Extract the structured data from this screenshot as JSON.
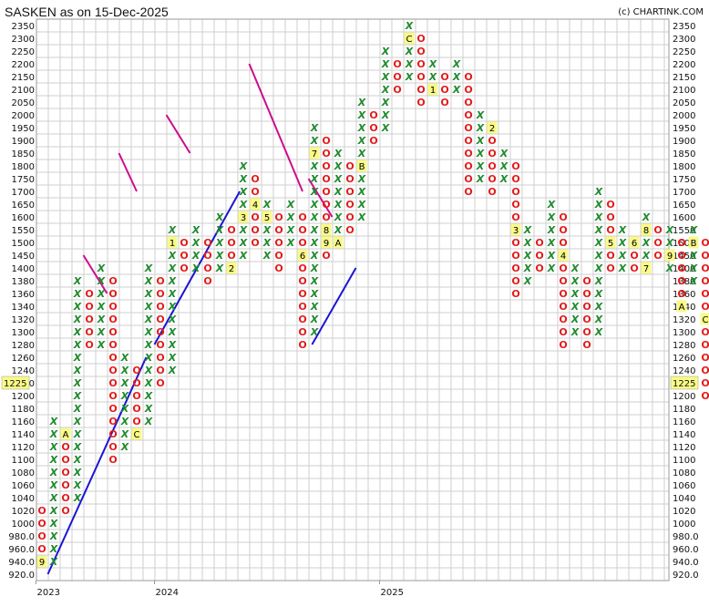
{
  "header": {
    "title": "SASKEN as on 15-Dec-2025",
    "copyright": "(c) CHARTINK.COM"
  },
  "last_price_label": "1225",
  "chart_data": {
    "type": "point-and-figure",
    "title": "SASKEN as on 15-Dec-2025",
    "y_ticks": [
      "920.0",
      "940.0",
      "960.0",
      "980.0",
      "1000",
      "1020",
      "1040",
      "1060",
      "1080",
      "1100",
      "1120",
      "1140",
      "1160",
      "1180",
      "1200",
      "1220",
      "1240",
      "1260",
      "1280",
      "1300",
      "1320",
      "1340",
      "1360",
      "1380",
      "1400",
      "1450",
      "1500",
      "1550",
      "1600",
      "1650",
      "1700",
      "1750",
      "1800",
      "1850",
      "1900",
      "1950",
      "2000",
      "2050",
      "2100",
      "2150",
      "2200",
      "2250",
      "2300",
      "2350"
    ],
    "year_labels": [
      {
        "label": "2023",
        "col": 0
      },
      {
        "label": "2024",
        "col": 10
      },
      {
        "label": "2025",
        "col": 29
      }
    ],
    "columns": [
      {
        "type": "O",
        "from": "940.0",
        "to": "1020",
        "marks": {
          "940.0": "9"
        }
      },
      {
        "type": "X",
        "from": "940.0",
        "to": "1160"
      },
      {
        "type": "O",
        "from": "1020",
        "to": "1140",
        "marks": {
          "1140": "A"
        }
      },
      {
        "type": "X",
        "from": "1040",
        "to": "1380"
      },
      {
        "type": "O",
        "from": "1280",
        "to": "1360"
      },
      {
        "type": "X",
        "from": "1280",
        "to": "1400"
      },
      {
        "type": "O",
        "from": "1100",
        "to": "1380"
      },
      {
        "type": "X",
        "from": "1120",
        "to": "1260"
      },
      {
        "type": "O",
        "from": "1140",
        "to": "1240",
        "marks": {
          "1140": "C"
        }
      },
      {
        "type": "X",
        "from": "1160",
        "to": "1400"
      },
      {
        "type": "O",
        "from": "1220",
        "to": "1380"
      },
      {
        "type": "X",
        "from": "1240",
        "to": "1550",
        "marks": {
          "1500": "1"
        }
      },
      {
        "type": "O",
        "from": "1400",
        "to": "1500"
      },
      {
        "type": "X",
        "from": "1400",
        "to": "1550"
      },
      {
        "type": "O",
        "from": "1380",
        "to": "1500"
      },
      {
        "type": "X",
        "from": "1400",
        "to": "1600"
      },
      {
        "type": "O",
        "from": "1400",
        "to": "1550",
        "marks": {
          "1400": "2"
        }
      },
      {
        "type": "X",
        "from": "1450",
        "to": "1800",
        "marks": {
          "1600": "3"
        }
      },
      {
        "type": "O",
        "from": "1500",
        "to": "1750",
        "marks": {
          "1650": "4"
        }
      },
      {
        "type": "X",
        "from": "1450",
        "to": "1650",
        "marks": {
          "1600": "5"
        }
      },
      {
        "type": "O",
        "from": "1400",
        "to": "1600"
      },
      {
        "type": "X",
        "from": "1500",
        "to": "1650"
      },
      {
        "type": "O",
        "from": "1280",
        "to": "1600",
        "marks": {
          "1450": "6"
        }
      },
      {
        "type": "X",
        "from": "1300",
        "to": "1950",
        "marks": {
          "1850": "7"
        }
      },
      {
        "type": "O",
        "from": "1450",
        "to": "1900",
        "marks": {
          "1550": "8",
          "1500": "9"
        }
      },
      {
        "type": "X",
        "from": "1500",
        "to": "1850",
        "marks": {
          "1500": "A"
        }
      },
      {
        "type": "O",
        "from": "1550",
        "to": "1800"
      },
      {
        "type": "X",
        "from": "1600",
        "to": "2050",
        "marks": {
          "1800": "B"
        }
      },
      {
        "type": "O",
        "from": "1900",
        "to": "2000"
      },
      {
        "type": "X",
        "from": "1950",
        "to": "2250"
      },
      {
        "type": "O",
        "from": "2100",
        "to": "2200"
      },
      {
        "type": "X",
        "from": "2150",
        "to": "2350",
        "marks": {
          "2300": "C"
        }
      },
      {
        "type": "O",
        "from": "2050",
        "to": "2300"
      },
      {
        "type": "X",
        "from": "2100",
        "to": "2200",
        "marks": {
          "2100": "1"
        }
      },
      {
        "type": "O",
        "from": "2050",
        "to": "2150"
      },
      {
        "type": "X",
        "from": "2100",
        "to": "2200"
      },
      {
        "type": "O",
        "from": "1700",
        "to": "2150"
      },
      {
        "type": "X",
        "from": "1750",
        "to": "2000"
      },
      {
        "type": "O",
        "from": "1700",
        "to": "1950",
        "marks": {
          "1950": "2"
        }
      },
      {
        "type": "X",
        "from": "1750",
        "to": "1850"
      },
      {
        "type": "O",
        "from": "1360",
        "to": "1800",
        "marks": {
          "1550": "3"
        }
      },
      {
        "type": "X",
        "from": "1380",
        "to": "1550"
      },
      {
        "type": "O",
        "from": "1400",
        "to": "1500"
      },
      {
        "type": "X",
        "from": "1400",
        "to": "1650"
      },
      {
        "type": "O",
        "from": "1280",
        "to": "1600",
        "marks": {
          "1450": "4"
        }
      },
      {
        "type": "X",
        "from": "1300",
        "to": "1400"
      },
      {
        "type": "O",
        "from": "1280",
        "to": "1380"
      },
      {
        "type": "X",
        "from": "1300",
        "to": "1700"
      },
      {
        "type": "O",
        "from": "1400",
        "to": "1650",
        "marks": {
          "1500": "5"
        }
      },
      {
        "type": "X",
        "from": "1400",
        "to": "1550"
      },
      {
        "type": "O",
        "from": "1400",
        "to": "1500",
        "marks": {
          "1500": "6"
        }
      },
      {
        "type": "X",
        "from": "1400",
        "to": "1600",
        "marks": {
          "1550": "8",
          "1400": "7"
        }
      },
      {
        "type": "O",
        "from": "1450",
        "to": "1550"
      },
      {
        "type": "X",
        "from": "1400",
        "to": "1550",
        "marks": {
          "1450": "9"
        }
      },
      {
        "type": "O",
        "from": "1340",
        "to": "1500",
        "marks": {
          "1340": "A"
        }
      },
      {
        "type": "X",
        "from": "1380",
        "to": "1550",
        "marks": {
          "1500": "B"
        }
      },
      {
        "type": "O",
        "from": "1200",
        "to": "1500",
        "marks": {
          "1320": "C"
        }
      }
    ],
    "trendlines": [
      {
        "kind": "support",
        "color": "#1a14d4",
        "from": {
          "col": 0.5,
          "y": "920.0"
        },
        "to": {
          "col": 8.8,
          "y": "1260"
        }
      },
      {
        "kind": "support",
        "color": "#1a14d4",
        "from": {
          "col": 9.5,
          "y": "1280"
        },
        "to": {
          "col": 16.7,
          "y": "1700"
        }
      },
      {
        "kind": "support",
        "color": "#1a14d4",
        "from": {
          "col": 22.8,
          "y": "1280"
        },
        "to": {
          "col": 26.5,
          "y": "1400"
        }
      },
      {
        "kind": "resistance",
        "color": "#cc0c8f",
        "from": {
          "col": 3.5,
          "y": "1450"
        },
        "to": {
          "col": 5.5,
          "y": "1360"
        }
      },
      {
        "kind": "resistance",
        "color": "#cc0c8f",
        "from": {
          "col": 6.5,
          "y": "1850"
        },
        "to": {
          "col": 8,
          "y": "1700"
        }
      },
      {
        "kind": "resistance",
        "color": "#cc0c8f",
        "from": {
          "col": 10.5,
          "y": "2000"
        },
        "to": {
          "col": 12.5,
          "y": "1850"
        }
      },
      {
        "kind": "resistance",
        "color": "#cc0c8f",
        "from": {
          "col": 17.5,
          "y": "2200"
        },
        "to": {
          "col": 22,
          "y": "1700"
        }
      },
      {
        "kind": "resistance",
        "color": "#cc0c8f",
        "from": {
          "col": 22.5,
          "y": "1750"
        },
        "to": {
          "col": 24.5,
          "y": "1600"
        }
      }
    ],
    "colors": {
      "x": "#1f8a2e",
      "o": "#e31b1b",
      "grid": "#cfcfcf",
      "support": "#1a14d4",
      "resistance": "#cc0c8f",
      "highlight": "#fafa88"
    }
  }
}
